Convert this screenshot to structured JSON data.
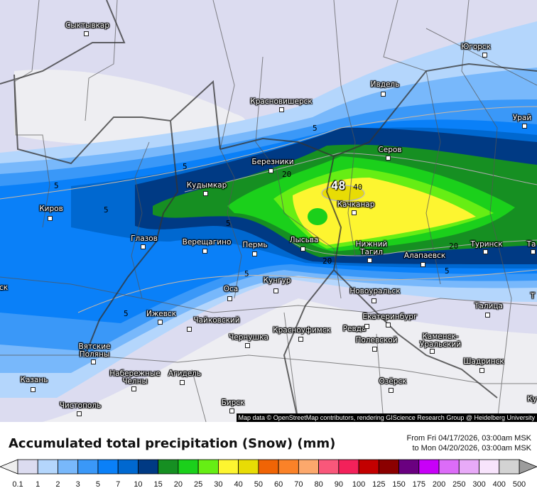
{
  "map": {
    "cities": [
      "Сыктывкар",
      "Югорск",
      "Ивдель",
      "Красновишерск",
      "Урай",
      "Серов",
      "Березники",
      "Кудымкар",
      "Киров",
      "Качканар",
      "Глазов",
      "Верещагино",
      "Пермь",
      "Лысьва",
      "Нижний\nТагил",
      "Алапаевск",
      "Туринск",
      "Та",
      "Кунгур",
      "Оса",
      "Новоуральск",
      "Ижевск",
      "Чайковский",
      "Талица",
      "Екатеринбург",
      "Ревда",
      "Красноуфимск",
      "Чернушка",
      "Полевской",
      "Каменск-\nУральский",
      "Вятские\nПоляны",
      "Шадринск",
      "Набережные\nЧелны",
      "Агидель",
      "Казань",
      "Озёрск",
      "Чистополь",
      "Бирск",
      "ск",
      "Т",
      "Ку"
    ],
    "contour_labels": [
      "5",
      "5",
      "5",
      "5",
      "5",
      "5",
      "5",
      "20",
      "20",
      "20",
      "40",
      "48",
      "5"
    ],
    "attribution": "Map data © OpenStreetMap contributors, rendering GIScience Research Group @ Heidelberg University"
  },
  "legend": {
    "title": "Accumulated total precipitation (Snow) (mm)",
    "from": "From Fri 04/17/2026, 03:00am MSK",
    "to": "to Mon 04/20/2026, 03:00am MSK",
    "ticks": [
      "0.1",
      "1",
      "2",
      "3",
      "5",
      "7",
      "10",
      "15",
      "20",
      "25",
      "30",
      "40",
      "50",
      "60",
      "70",
      "80",
      "90",
      "100",
      "125",
      "150",
      "175",
      "200",
      "250",
      "300",
      "400",
      "500"
    ],
    "colors": [
      "#dcdcf0",
      "#b4d6fc",
      "#78b8fb",
      "#3a98f8",
      "#0a80f8",
      "#0068d0",
      "#003a84",
      "#168f22",
      "#1bd01b",
      "#66ee14",
      "#fdf530",
      "#e8dc05",
      "#f06405",
      "#fb8228",
      "#fca86c",
      "#f9577a",
      "#f3215a",
      "#c30000",
      "#8b0000",
      "#6a0080",
      "#c800f8",
      "#dc6cf8",
      "#e8aaf8",
      "#f8e4fc",
      "#d3d3d3"
    ],
    "under_color": "#eeeeee",
    "over_color": "#9c9c9c"
  }
}
